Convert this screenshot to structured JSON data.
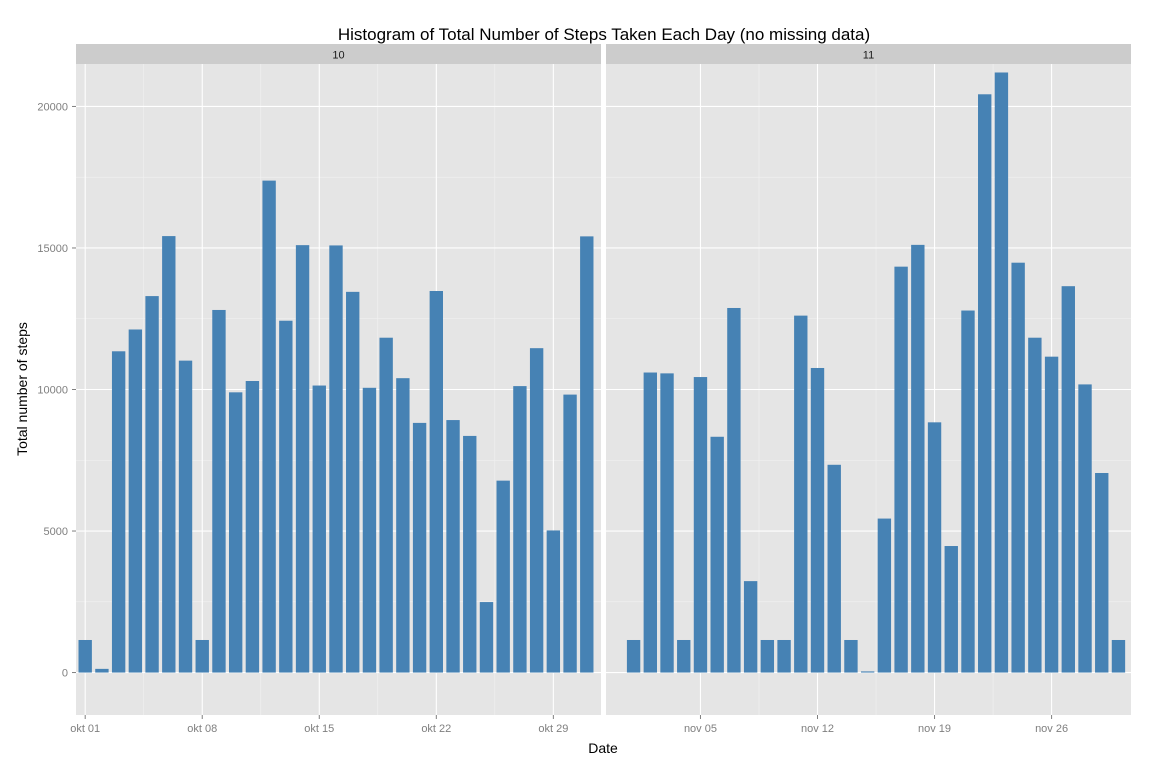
{
  "chart_data": {
    "type": "bar",
    "title": "Histogram of Total Number of Steps Taken Each Day (no missing data)",
    "xlabel": "Date",
    "ylabel": "Total number of steps",
    "ylim": [
      -1500,
      21500
    ],
    "y_ticks": [
      0,
      5000,
      10000,
      15000,
      20000
    ],
    "y_tick_labels": [
      "0",
      "5000",
      "10000",
      "15000",
      "20000"
    ],
    "grid": true,
    "bar_color": "#4682b4",
    "panel_background": "#e5e5e5",
    "strip_background": "#cccccc",
    "panels": [
      {
        "strip_label": "10",
        "xlim": [
          0.45,
          31.85
        ],
        "x_tick_positions": [
          1,
          8,
          15,
          22,
          29
        ],
        "x_tick_labels": [
          "okt 01",
          "okt 08",
          "okt 15",
          "okt 22",
          "okt 29"
        ],
        "days": [
          1,
          2,
          3,
          4,
          5,
          6,
          7,
          8,
          9,
          10,
          11,
          12,
          13,
          14,
          15,
          16,
          17,
          18,
          19,
          20,
          21,
          22,
          23,
          24,
          25,
          26,
          27,
          28,
          29,
          30,
          31
        ],
        "values": [
          1150,
          130,
          11350,
          12120,
          13300,
          15420,
          11020,
          1150,
          12810,
          9900,
          10300,
          17380,
          12430,
          15100,
          10140,
          15090,
          13450,
          10060,
          11830,
          10400,
          8820,
          13480,
          8920,
          8360,
          2490,
          6780,
          10120,
          11460,
          5020,
          9820,
          15410
        ]
      },
      {
        "strip_label": "11",
        "xlim": [
          -0.65,
          30.75
        ],
        "x_tick_positions": [
          5,
          12,
          19,
          26
        ],
        "x_tick_labels": [
          "nov 05",
          "nov 12",
          "nov 19",
          "nov 26"
        ],
        "days": [
          1,
          2,
          3,
          4,
          5,
          6,
          7,
          8,
          9,
          10,
          11,
          12,
          13,
          14,
          15,
          16,
          17,
          18,
          19,
          20,
          21,
          22,
          23,
          24,
          25,
          26,
          27,
          28,
          29,
          30
        ],
        "values": [
          1150,
          10600,
          10570,
          1150,
          10440,
          8330,
          12880,
          3230,
          1150,
          1150,
          12610,
          10760,
          7340,
          1150,
          40,
          5440,
          14340,
          15110,
          8840,
          4470,
          12790,
          20430,
          21200,
          14480,
          11830,
          11160,
          13650,
          10180,
          7050,
          1150
        ]
      }
    ]
  }
}
